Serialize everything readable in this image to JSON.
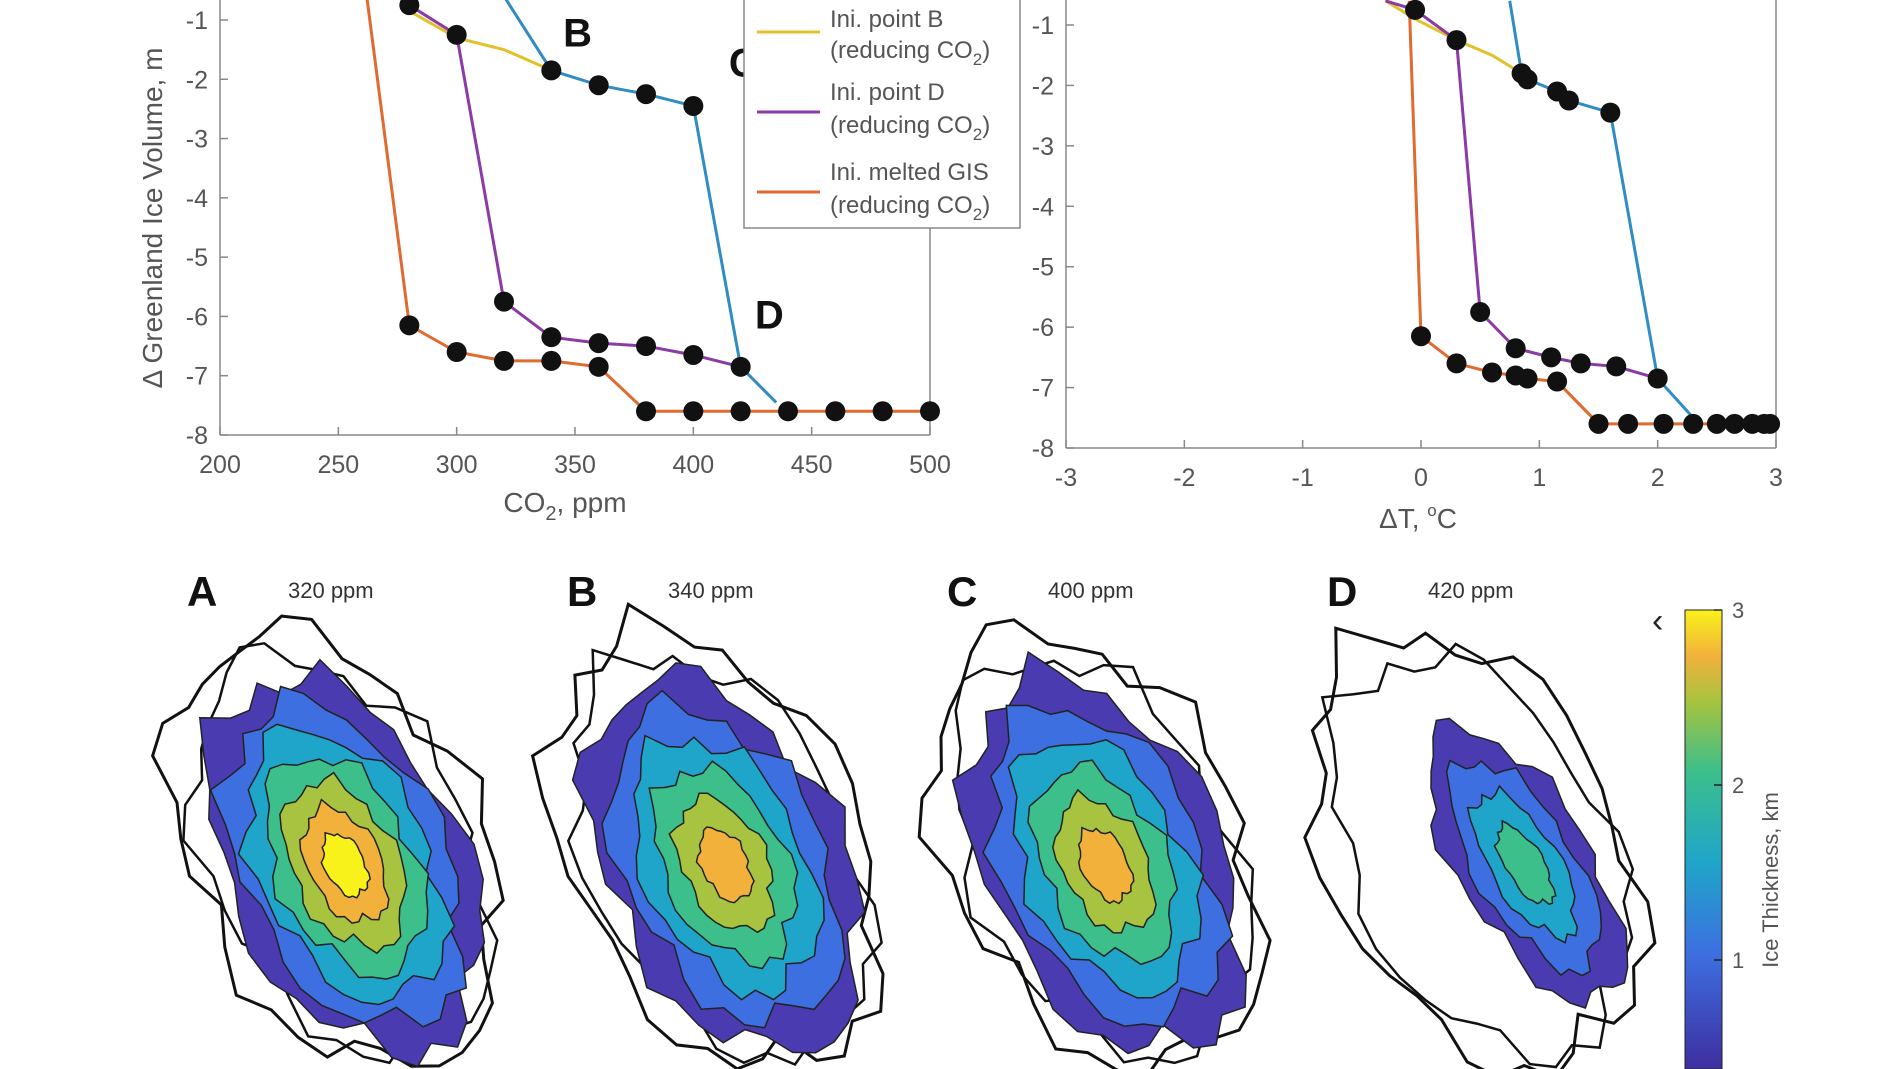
{
  "colors": {
    "blue": "#2f8cc4",
    "yellow": "#e3c12b",
    "purple": "#8b3aa6",
    "orange": "#e06a2f",
    "axis": "#777777",
    "marker": "#111111"
  },
  "chart_data": [
    {
      "type": "line",
      "id": "left",
      "xlabel": "CO2, ppm",
      "xlabel_main": "CO",
      "xlabel_sub": "2",
      "xlabel_rest": ", ppm",
      "ylabel": "Δ Greenland Ice Volume, m",
      "xlim": [
        200,
        500
      ],
      "ylim": [
        -8,
        -0.6
      ],
      "xticks": [
        "200",
        "250",
        "300",
        "350",
        "400",
        "450",
        "500"
      ],
      "xtick_values": [
        200,
        250,
        300,
        350,
        400,
        450,
        500
      ],
      "yticks": [
        "-1",
        "-2",
        "-3",
        "-4",
        "-5",
        "-6",
        "-7",
        "-8"
      ],
      "ytick_values": [
        -1,
        -2,
        -3,
        -4,
        -5,
        -6,
        -7,
        -8
      ],
      "series": [
        {
          "name": "blue (increasing CO2)",
          "color": "blue",
          "markers": true,
          "x": [
            340,
            360,
            380,
            400
          ],
          "y": [
            -1.85,
            -2.1,
            -2.25,
            -2.45
          ]
        },
        {
          "name": "blue connecting",
          "color": "blue",
          "markers": false,
          "x": [
            320,
            340
          ],
          "y": [
            -0.6,
            -1.85
          ]
        },
        {
          "name": "blue drop",
          "color": "blue",
          "markers": false,
          "x": [
            400,
            420
          ],
          "y": [
            -2.45,
            -6.85
          ]
        },
        {
          "name": "blue tail",
          "color": "blue",
          "markers": false,
          "x": [
            420,
            435
          ],
          "y": [
            -6.85,
            -7.45
          ]
        },
        {
          "name": "Ini. point B (reducing CO2)",
          "color": "yellow",
          "markers": false,
          "x": [
            280,
            300,
            320,
            340
          ],
          "y": [
            -0.85,
            -1.3,
            -1.5,
            -1.85
          ]
        },
        {
          "name": "Ini. point D (reducing CO2)",
          "color": "purple",
          "markers": true,
          "x": [
            280,
            300,
            320,
            340,
            360,
            380,
            400,
            420
          ],
          "y": [
            -0.75,
            -1.25,
            -5.75,
            -6.35,
            -6.45,
            -6.5,
            -6.65,
            -6.85
          ]
        },
        {
          "name": "Ini. melted GIS (reducing CO2)",
          "color": "orange",
          "markers": true,
          "x": [
            262,
            280,
            300,
            320,
            340,
            360,
            380,
            400,
            420,
            440,
            460,
            480,
            500
          ],
          "y": [
            -0.6,
            -6.15,
            -6.6,
            -6.75,
            -6.75,
            -6.85,
            -7.6,
            -7.6,
            -7.6,
            -7.6,
            -7.6,
            -7.6,
            -7.6
          ]
        }
      ],
      "annotations": [
        {
          "text": "B",
          "x": 345,
          "y": -1.45
        },
        {
          "text": "C",
          "x": 415,
          "y": -1.95
        },
        {
          "text": "D",
          "x": 426,
          "y": -6.2
        }
      ],
      "legend": {
        "placement": "top-right",
        "items": [
          {
            "line1": "Ini. point B",
            "line2": "(reducing CO",
            "sub": "2",
            "close": ")",
            "color": "yellow"
          },
          {
            "line1": "Ini. point D",
            "line2": "(reducing CO",
            "sub": "2",
            "close": ")",
            "color": "purple"
          },
          {
            "line1": "Ini. melted GIS",
            "line2": "(reducing CO",
            "sub": "2",
            "close": ")",
            "color": "orange"
          }
        ]
      }
    },
    {
      "type": "line",
      "id": "right",
      "xlabel": "ΔT, °C",
      "xlabel_main": "ΔT, ",
      "xlabel_sup": "o",
      "xlabel_rest": "C",
      "xlim": [
        -3,
        3
      ],
      "ylim": [
        -8,
        -0.6
      ],
      "xticks": [
        "-3",
        "-2",
        "-1",
        "0",
        "1",
        "2",
        "3"
      ],
      "xtick_values": [
        -3,
        -2,
        -1,
        0,
        1,
        2,
        3
      ],
      "yticks": [
        "-1",
        "-2",
        "-3",
        "-4",
        "-5",
        "-6",
        "-7",
        "-8"
      ],
      "ytick_values": [
        -1,
        -2,
        -3,
        -4,
        -5,
        -6,
        -7,
        -8
      ],
      "series": [
        {
          "name": "blue",
          "color": "blue",
          "markers": true,
          "x": [
            0.75,
            0.85,
            0.9,
            1.15,
            1.25,
            1.6
          ],
          "y": [
            -0.6,
            -1.8,
            -1.9,
            -2.1,
            -2.25,
            -2.45
          ]
        },
        {
          "name": "blue drop",
          "color": "blue",
          "markers": false,
          "x": [
            1.6,
            2.0,
            2.3
          ],
          "y": [
            -2.45,
            -6.85,
            -7.5
          ]
        },
        {
          "name": "yellow",
          "color": "yellow",
          "markers": false,
          "x": [
            -0.3,
            -0.05,
            0.3,
            0.6,
            0.85
          ],
          "y": [
            -0.6,
            -0.9,
            -1.25,
            -1.5,
            -1.8
          ]
        },
        {
          "name": "purple",
          "color": "purple",
          "markers": true,
          "x": [
            -0.3,
            -0.05,
            0.3,
            0.5,
            0.8,
            1.1,
            1.35,
            1.65,
            2.0
          ],
          "y": [
            -0.6,
            -0.75,
            -1.25,
            -5.75,
            -6.35,
            -6.5,
            -6.6,
            -6.65,
            -6.85
          ]
        },
        {
          "name": "orange",
          "color": "orange",
          "markers": true,
          "x": [
            -0.1,
            0.0,
            0.3,
            0.6,
            0.8,
            0.9,
            1.15,
            1.5,
            1.75,
            2.05,
            2.3,
            2.5,
            2.65,
            2.8,
            2.9,
            2.95
          ],
          "y": [
            -0.6,
            -6.15,
            -6.6,
            -6.75,
            -6.8,
            -6.85,
            -6.9,
            -7.6,
            -7.6,
            -7.6,
            -7.6,
            -7.6,
            -7.6,
            -7.6,
            -7.6,
            -7.6
          ]
        }
      ]
    }
  ],
  "maps": [
    {
      "label": "A",
      "ppm": "320 ppm",
      "levels": 6
    },
    {
      "label": "B",
      "ppm": "340 ppm",
      "levels": 5
    },
    {
      "label": "C",
      "ppm": "400 ppm",
      "levels": 5
    },
    {
      "label": "D",
      "ppm": "420 ppm",
      "levels": 3
    }
  ],
  "colorbar": {
    "label": "Ice Thickness, km",
    "ticks": [
      "1",
      "2",
      "3"
    ],
    "tick_values": [
      1,
      2,
      3
    ],
    "range": [
      0,
      3
    ]
  },
  "stray_mark": "‹"
}
